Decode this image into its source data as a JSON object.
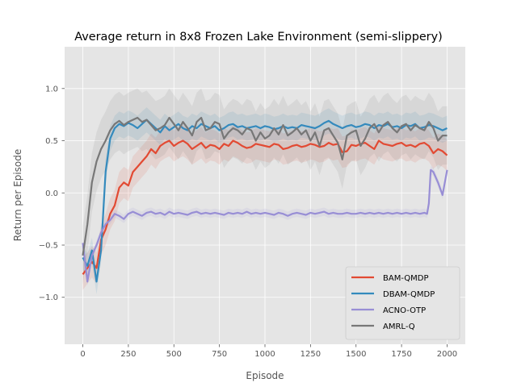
{
  "chart_data": {
    "type": "line",
    "title": "Average return in 8x8 Frozen Lake Environment (semi-slippery)",
    "xlabel": "Episode",
    "ylabel": "Return per Episode",
    "xlim": [
      -100,
      2100
    ],
    "ylim": [
      -1.45,
      1.4
    ],
    "xticks": [
      0,
      250,
      500,
      750,
      1000,
      1250,
      1500,
      1750,
      2000
    ],
    "yticks": [
      -1.0,
      -0.5,
      0.0,
      0.5,
      1.0
    ],
    "xtick_labels": [
      "0",
      "250",
      "500",
      "750",
      "1000",
      "1250",
      "1500",
      "1750",
      "2000"
    ],
    "ytick_labels": [
      "−1.0",
      "−0.5",
      "0.0",
      "0.5",
      "1.0"
    ],
    "grid": true,
    "legend_position": "lower-right",
    "shaded_band": "± spread",
    "series": [
      {
        "name": "BAM-QMDP",
        "color": "#E24A33",
        "x": [
          0,
          25,
          50,
          75,
          100,
          125,
          150,
          175,
          200,
          225,
          250,
          275,
          300,
          325,
          350,
          375,
          400,
          425,
          450,
          475,
          500,
          525,
          550,
          575,
          600,
          625,
          650,
          675,
          700,
          725,
          750,
          775,
          800,
          825,
          850,
          875,
          900,
          925,
          950,
          975,
          1000,
          1025,
          1050,
          1075,
          1100,
          1125,
          1150,
          1175,
          1200,
          1225,
          1250,
          1275,
          1300,
          1325,
          1350,
          1375,
          1400,
          1425,
          1450,
          1475,
          1500,
          1525,
          1550,
          1575,
          1600,
          1625,
          1650,
          1675,
          1700,
          1725,
          1750,
          1775,
          1800,
          1825,
          1850,
          1875,
          1900,
          1925,
          1950,
          1975,
          2000
        ],
        "y": [
          -0.78,
          -0.72,
          -0.66,
          -0.72,
          -0.45,
          -0.35,
          -0.2,
          -0.12,
          0.05,
          0.1,
          0.07,
          0.2,
          0.25,
          0.3,
          0.35,
          0.42,
          0.38,
          0.45,
          0.48,
          0.5,
          0.45,
          0.48,
          0.5,
          0.47,
          0.42,
          0.45,
          0.48,
          0.43,
          0.46,
          0.45,
          0.42,
          0.47,
          0.45,
          0.5,
          0.48,
          0.45,
          0.43,
          0.44,
          0.47,
          0.46,
          0.45,
          0.44,
          0.47,
          0.46,
          0.42,
          0.43,
          0.45,
          0.46,
          0.44,
          0.45,
          0.47,
          0.46,
          0.44,
          0.45,
          0.48,
          0.46,
          0.47,
          0.39,
          0.4,
          0.46,
          0.45,
          0.47,
          0.48,
          0.45,
          0.42,
          0.5,
          0.47,
          0.46,
          0.45,
          0.47,
          0.48,
          0.45,
          0.46,
          0.44,
          0.47,
          0.48,
          0.45,
          0.38,
          0.42,
          0.4,
          0.36
        ],
        "spread": 0.15
      },
      {
        "name": "DBAM-QMDP",
        "color": "#348ABD",
        "x": [
          0,
          25,
          50,
          75,
          100,
          125,
          150,
          175,
          200,
          225,
          250,
          275,
          300,
          325,
          350,
          375,
          400,
          425,
          450,
          475,
          500,
          525,
          550,
          575,
          600,
          625,
          650,
          675,
          700,
          725,
          750,
          775,
          800,
          825,
          850,
          875,
          900,
          925,
          950,
          975,
          1000,
          1025,
          1050,
          1075,
          1100,
          1125,
          1150,
          1175,
          1200,
          1225,
          1250,
          1275,
          1300,
          1325,
          1350,
          1375,
          1400,
          1425,
          1450,
          1475,
          1500,
          1525,
          1550,
          1575,
          1600,
          1625,
          1650,
          1675,
          1700,
          1725,
          1750,
          1775,
          1800,
          1825,
          1850,
          1875,
          1900,
          1925,
          1950,
          1975,
          2000
        ],
        "y": [
          -0.62,
          -0.7,
          -0.55,
          -0.85,
          -0.55,
          0.2,
          0.52,
          0.62,
          0.66,
          0.64,
          0.67,
          0.65,
          0.62,
          0.66,
          0.7,
          0.66,
          0.62,
          0.58,
          0.64,
          0.6,
          0.63,
          0.66,
          0.62,
          0.6,
          0.64,
          0.62,
          0.66,
          0.64,
          0.62,
          0.64,
          0.6,
          0.62,
          0.65,
          0.66,
          0.63,
          0.64,
          0.62,
          0.63,
          0.64,
          0.62,
          0.64,
          0.63,
          0.61,
          0.62,
          0.64,
          0.62,
          0.63,
          0.62,
          0.65,
          0.64,
          0.63,
          0.62,
          0.64,
          0.67,
          0.69,
          0.66,
          0.64,
          0.62,
          0.64,
          0.65,
          0.63,
          0.64,
          0.66,
          0.65,
          0.62,
          0.65,
          0.64,
          0.66,
          0.63,
          0.64,
          0.62,
          0.65,
          0.64,
          0.66,
          0.62,
          0.63,
          0.65,
          0.64,
          0.62,
          0.6,
          0.62
        ],
        "spread": 0.12
      },
      {
        "name": "ACNO-OTP",
        "color": "#988ED5",
        "x": [
          0,
          25,
          50,
          75,
          100,
          125,
          150,
          175,
          200,
          225,
          250,
          275,
          300,
          325,
          350,
          375,
          400,
          425,
          450,
          475,
          500,
          525,
          550,
          575,
          600,
          625,
          650,
          675,
          700,
          725,
          750,
          775,
          800,
          825,
          850,
          875,
          900,
          925,
          950,
          975,
          1000,
          1025,
          1050,
          1075,
          1100,
          1125,
          1150,
          1175,
          1200,
          1225,
          1250,
          1275,
          1300,
          1325,
          1350,
          1375,
          1400,
          1425,
          1450,
          1475,
          1500,
          1525,
          1550,
          1575,
          1600,
          1625,
          1650,
          1675,
          1700,
          1725,
          1750,
          1775,
          1800,
          1825,
          1850,
          1875,
          1890,
          1900,
          1910,
          1925,
          1950,
          1975,
          2000
        ],
        "y": [
          -0.48,
          -0.85,
          -0.6,
          -0.5,
          -0.38,
          -0.3,
          -0.26,
          -0.2,
          -0.22,
          -0.25,
          -0.2,
          -0.18,
          -0.2,
          -0.22,
          -0.19,
          -0.18,
          -0.2,
          -0.19,
          -0.21,
          -0.18,
          -0.2,
          -0.19,
          -0.2,
          -0.21,
          -0.19,
          -0.18,
          -0.2,
          -0.19,
          -0.2,
          -0.19,
          -0.2,
          -0.21,
          -0.19,
          -0.2,
          -0.19,
          -0.2,
          -0.18,
          -0.2,
          -0.19,
          -0.2,
          -0.19,
          -0.2,
          -0.21,
          -0.19,
          -0.2,
          -0.22,
          -0.2,
          -0.19,
          -0.2,
          -0.21,
          -0.19,
          -0.2,
          -0.19,
          -0.18,
          -0.2,
          -0.19,
          -0.2,
          -0.2,
          -0.19,
          -0.2,
          -0.2,
          -0.19,
          -0.2,
          -0.19,
          -0.2,
          -0.19,
          -0.2,
          -0.19,
          -0.2,
          -0.19,
          -0.2,
          -0.19,
          -0.2,
          -0.19,
          -0.2,
          -0.19,
          -0.2,
          -0.1,
          0.22,
          0.2,
          0.1,
          -0.02,
          0.22
        ],
        "spread": 0.04
      },
      {
        "name": "AMRL-Q",
        "color": "#777777",
        "x": [
          0,
          25,
          50,
          75,
          100,
          125,
          150,
          175,
          200,
          225,
          250,
          275,
          300,
          325,
          350,
          375,
          400,
          425,
          450,
          475,
          500,
          525,
          550,
          575,
          600,
          625,
          650,
          675,
          700,
          725,
          750,
          775,
          800,
          825,
          850,
          875,
          900,
          925,
          950,
          975,
          1000,
          1025,
          1050,
          1075,
          1100,
          1125,
          1150,
          1175,
          1200,
          1225,
          1250,
          1275,
          1300,
          1325,
          1350,
          1375,
          1400,
          1425,
          1450,
          1475,
          1500,
          1525,
          1550,
          1575,
          1600,
          1625,
          1650,
          1675,
          1700,
          1725,
          1750,
          1775,
          1800,
          1825,
          1850,
          1875,
          1900,
          1925,
          1950,
          1975,
          2000
        ],
        "y": [
          -0.6,
          -0.3,
          0.1,
          0.3,
          0.42,
          0.5,
          0.6,
          0.66,
          0.69,
          0.65,
          0.68,
          0.7,
          0.72,
          0.68,
          0.7,
          0.65,
          0.6,
          0.62,
          0.65,
          0.72,
          0.66,
          0.6,
          0.68,
          0.62,
          0.55,
          0.68,
          0.72,
          0.6,
          0.62,
          0.68,
          0.66,
          0.52,
          0.58,
          0.62,
          0.6,
          0.56,
          0.62,
          0.6,
          0.5,
          0.58,
          0.52,
          0.55,
          0.62,
          0.56,
          0.65,
          0.55,
          0.58,
          0.62,
          0.56,
          0.6,
          0.5,
          0.58,
          0.45,
          0.6,
          0.62,
          0.55,
          0.48,
          0.32,
          0.55,
          0.58,
          0.6,
          0.45,
          0.52,
          0.62,
          0.66,
          0.58,
          0.65,
          0.68,
          0.62,
          0.58,
          0.64,
          0.66,
          0.6,
          0.65,
          0.62,
          0.6,
          0.68,
          0.62,
          0.5,
          0.55,
          0.55
        ],
        "spread": 0.28
      }
    ]
  }
}
